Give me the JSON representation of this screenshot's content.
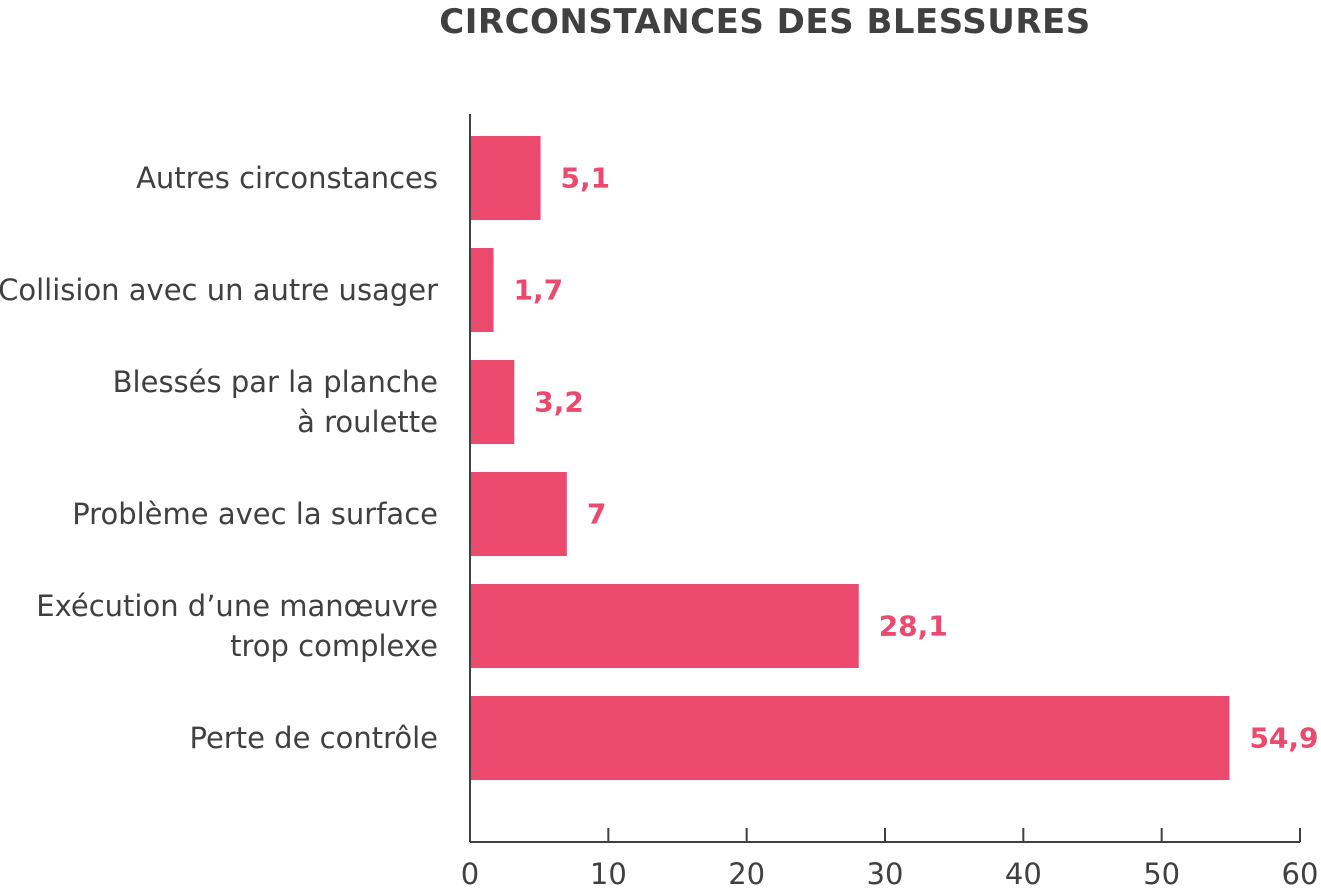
{
  "chart_data": {
    "type": "bar",
    "orientation": "horizontal",
    "title": "CIRCONSTANCES DES BLESSURES",
    "categories": [
      [
        "Autres circonstances"
      ],
      [
        "Collision avec un autre usager"
      ],
      [
        "Blessés par la planche",
        "à roulette"
      ],
      [
        "Problème avec la surface"
      ],
      [
        "Exécution d’une manœuvre",
        "trop complexe"
      ],
      [
        "Perte de contrôle"
      ]
    ],
    "values": [
      5.1,
      1.7,
      3.2,
      7,
      28.1,
      54.9
    ],
    "value_labels": [
      "5,1",
      "1,7",
      "3,2",
      "7",
      "28,1",
      "54,9"
    ],
    "xlim": [
      0,
      60
    ],
    "xticks": [
      0,
      10,
      20,
      30,
      40,
      50,
      60
    ],
    "xlabel": "",
    "ylabel": "",
    "grid": false,
    "legend": "none",
    "bar_color": "#eb4a6e",
    "axis_color": "#404040",
    "text_color": "#404040"
  }
}
